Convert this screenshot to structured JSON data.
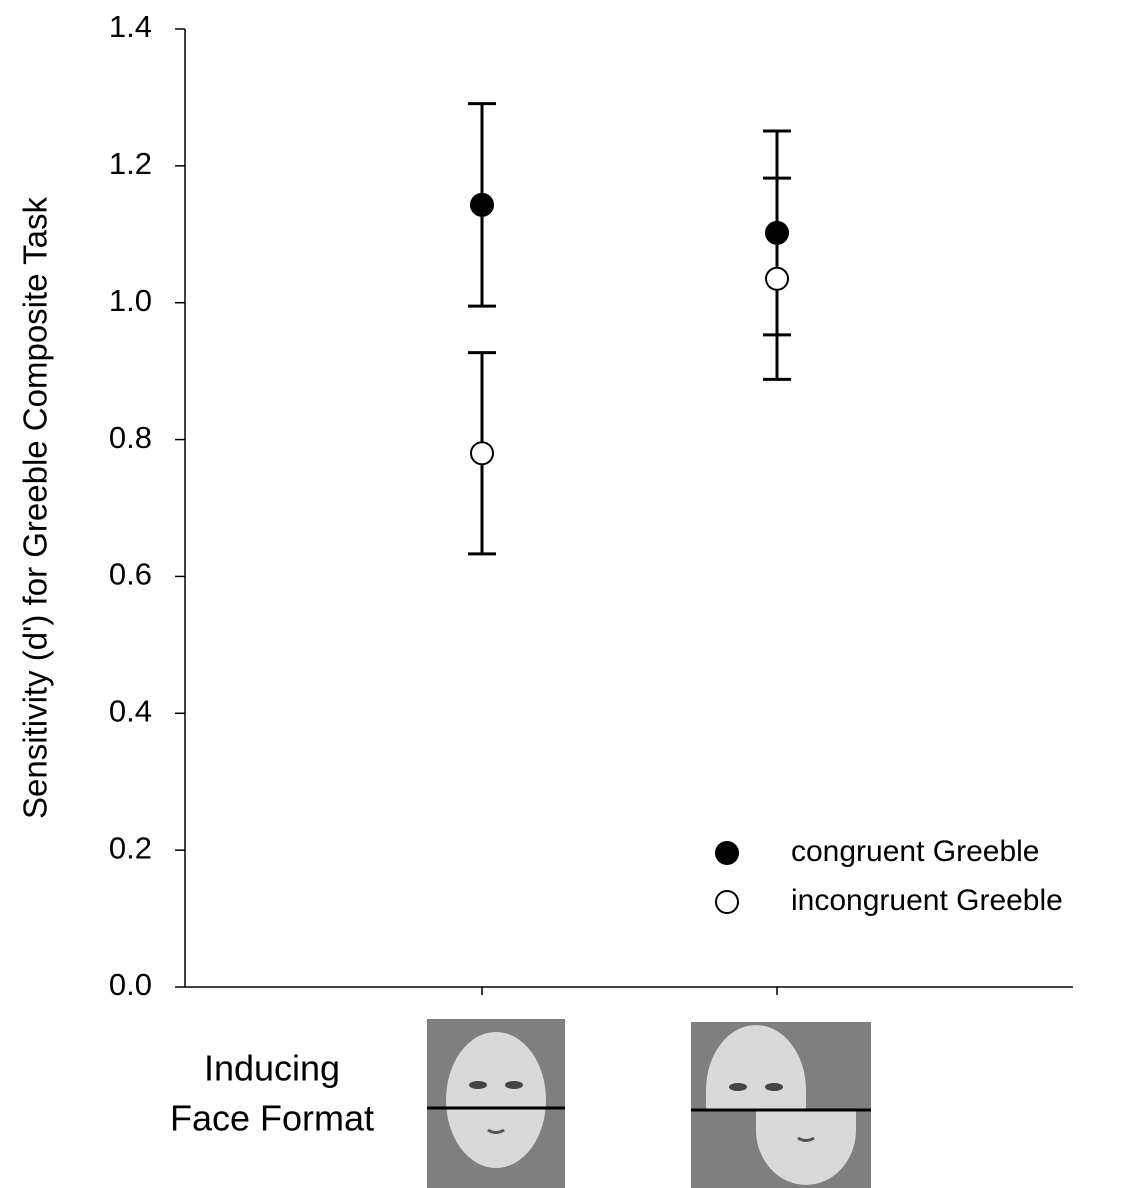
{
  "chart_data": {
    "type": "errorbar",
    "ylabel": "Sensitivity (d') for Greeble Composite Task",
    "xlabel": [
      "Inducing",
      "Face Format"
    ],
    "categories": [
      null,
      null
    ],
    "series": [
      {
        "name": "congruent Greeble",
        "color": "#000000",
        "fill": "#000000",
        "values": [
          1.143,
          1.102
        ],
        "errors": [
          0.148,
          0.149
        ]
      },
      {
        "name": "incongruent Greeble",
        "color": "#000000",
        "fill": "#ffffff",
        "values": [
          0.78,
          1.035
        ],
        "errors": [
          0.147,
          0.147
        ]
      }
    ],
    "ylim": [
      0,
      1.4
    ],
    "yticks": [
      {
        "value": 0,
        "label": "0.0"
      },
      0.2,
      0.4,
      0.6,
      0.8,
      {
        "value": 1,
        "label": "1.0"
      },
      1.2,
      1.4
    ],
    "legend": "lower right"
  }
}
